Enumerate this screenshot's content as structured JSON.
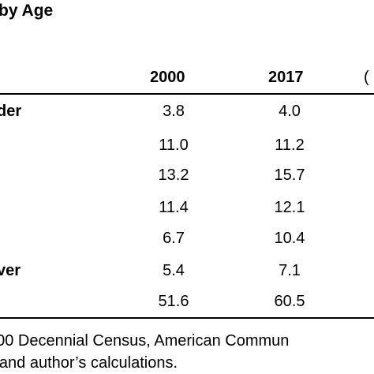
{
  "title": "by Age",
  "columns": {
    "col_2000": "2000",
    "col_2017": "2017",
    "col_extra": "("
  },
  "rows": [
    {
      "label": "der",
      "v2000": "3.8",
      "v2017": "4.0"
    },
    {
      "label": "",
      "v2000": "11.0",
      "v2017": "11.2"
    },
    {
      "label": "",
      "v2000": "13.2",
      "v2017": "15.7"
    },
    {
      "label": "",
      "v2000": "11.4",
      "v2017": "12.1"
    },
    {
      "label": "",
      "v2000": "6.7",
      "v2017": "10.4"
    },
    {
      "label": "ver",
      "v2000": "5.4",
      "v2017": "7.1"
    },
    {
      "label": "",
      "v2000": "51.6",
      "v2017": "60.5"
    }
  ],
  "source": {
    "line1": "000 Decennial Census, American Commun",
    "line2": "', and author’s calculations."
  }
}
